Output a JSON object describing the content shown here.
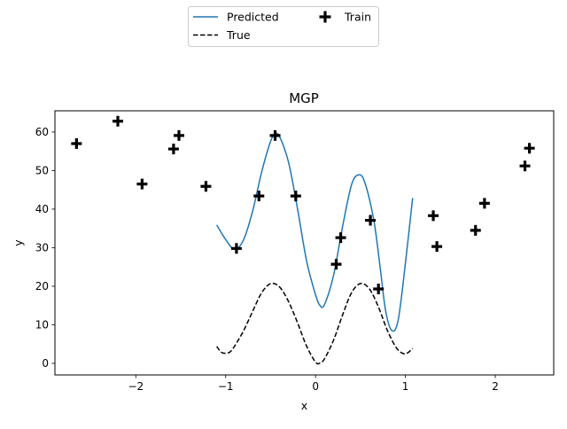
{
  "chart_data": {
    "type": "line",
    "title": "MGP",
    "xlabel": "x",
    "ylabel": "y",
    "xlim": [
      -2.9,
      2.65
    ],
    "ylim": [
      -3.0,
      65.5
    ],
    "xticks": [
      -2,
      -1,
      0,
      1,
      2
    ],
    "xtick_labels": [
      "−2",
      "−1",
      "0",
      "1",
      "2"
    ],
    "yticks": [
      0,
      10,
      20,
      30,
      40,
      50,
      60
    ],
    "ytick_labels": [
      "0",
      "10",
      "20",
      "30",
      "40",
      "50",
      "60"
    ],
    "grid": false,
    "legend_position": "top-center",
    "series": [
      {
        "name": "Predicted",
        "kind": "line",
        "color": "#1f77b4",
        "style": "solid",
        "points": [
          [
            -1.1,
            35.9
          ],
          [
            -1.0,
            32.1
          ],
          [
            -0.9,
            29.6
          ],
          [
            -0.8,
            32.1
          ],
          [
            -0.7,
            39.5
          ],
          [
            -0.6,
            49.6
          ],
          [
            -0.5,
            57.6
          ],
          [
            -0.45,
            59.4
          ],
          [
            -0.4,
            58.8
          ],
          [
            -0.3,
            52.1
          ],
          [
            -0.2,
            40.0
          ],
          [
            -0.1,
            26.6
          ],
          [
            0.0,
            17.8
          ],
          [
            0.05,
            15.0
          ],
          [
            0.1,
            15.3
          ],
          [
            0.2,
            22.8
          ],
          [
            0.3,
            35.4
          ],
          [
            0.4,
            46.3
          ],
          [
            0.48,
            48.9
          ],
          [
            0.55,
            46.8
          ],
          [
            0.65,
            36.9
          ],
          [
            0.72,
            24.6
          ],
          [
            0.78,
            13.6
          ],
          [
            0.85,
            8.5
          ],
          [
            0.92,
            11.3
          ],
          [
            1.0,
            26.0
          ],
          [
            1.08,
            42.9
          ]
        ]
      },
      {
        "name": "True",
        "kind": "line",
        "color": "#000000",
        "style": "dashed",
        "points": [
          [
            -1.1,
            4.4
          ],
          [
            -1.05,
            2.9
          ],
          [
            -1.0,
            2.6
          ],
          [
            -0.95,
            3.0
          ],
          [
            -0.9,
            4.5
          ],
          [
            -0.8,
            8.5
          ],
          [
            -0.7,
            13.5
          ],
          [
            -0.6,
            18.3
          ],
          [
            -0.5,
            20.7
          ],
          [
            -0.4,
            19.8
          ],
          [
            -0.3,
            16.0
          ],
          [
            -0.2,
            10.5
          ],
          [
            -0.1,
            4.5
          ],
          [
            0.0,
            0.3
          ],
          [
            0.05,
            0.1
          ],
          [
            0.1,
            1.2
          ],
          [
            0.2,
            6.0
          ],
          [
            0.3,
            12.5
          ],
          [
            0.4,
            18.3
          ],
          [
            0.5,
            20.7
          ],
          [
            0.6,
            19.3
          ],
          [
            0.7,
            14.6
          ],
          [
            0.8,
            8.5
          ],
          [
            0.9,
            4.0
          ],
          [
            0.98,
            2.5
          ],
          [
            1.03,
            2.8
          ],
          [
            1.08,
            3.9
          ]
        ]
      },
      {
        "name": "Train",
        "kind": "scatter",
        "marker": "plus",
        "color": "#000000",
        "points": [
          [
            -2.66,
            57.0
          ],
          [
            -2.2,
            62.8
          ],
          [
            -1.93,
            46.5
          ],
          [
            -1.58,
            55.6
          ],
          [
            -1.52,
            59.1
          ],
          [
            -1.22,
            45.9
          ],
          [
            -0.88,
            29.8
          ],
          [
            -0.63,
            43.4
          ],
          [
            -0.45,
            59.1
          ],
          [
            -0.22,
            43.4
          ],
          [
            0.23,
            25.7
          ],
          [
            0.28,
            32.6
          ],
          [
            0.61,
            37.1
          ],
          [
            0.7,
            19.3
          ],
          [
            1.31,
            38.3
          ],
          [
            1.35,
            30.3
          ],
          [
            1.78,
            34.5
          ],
          [
            1.88,
            41.5
          ],
          [
            2.33,
            51.2
          ],
          [
            2.38,
            55.8
          ]
        ]
      }
    ],
    "legend": {
      "items": [
        {
          "label": "Predicted",
          "series": 0
        },
        {
          "label": "Train",
          "series": 2
        },
        {
          "label": "True",
          "series": 1
        }
      ]
    }
  }
}
